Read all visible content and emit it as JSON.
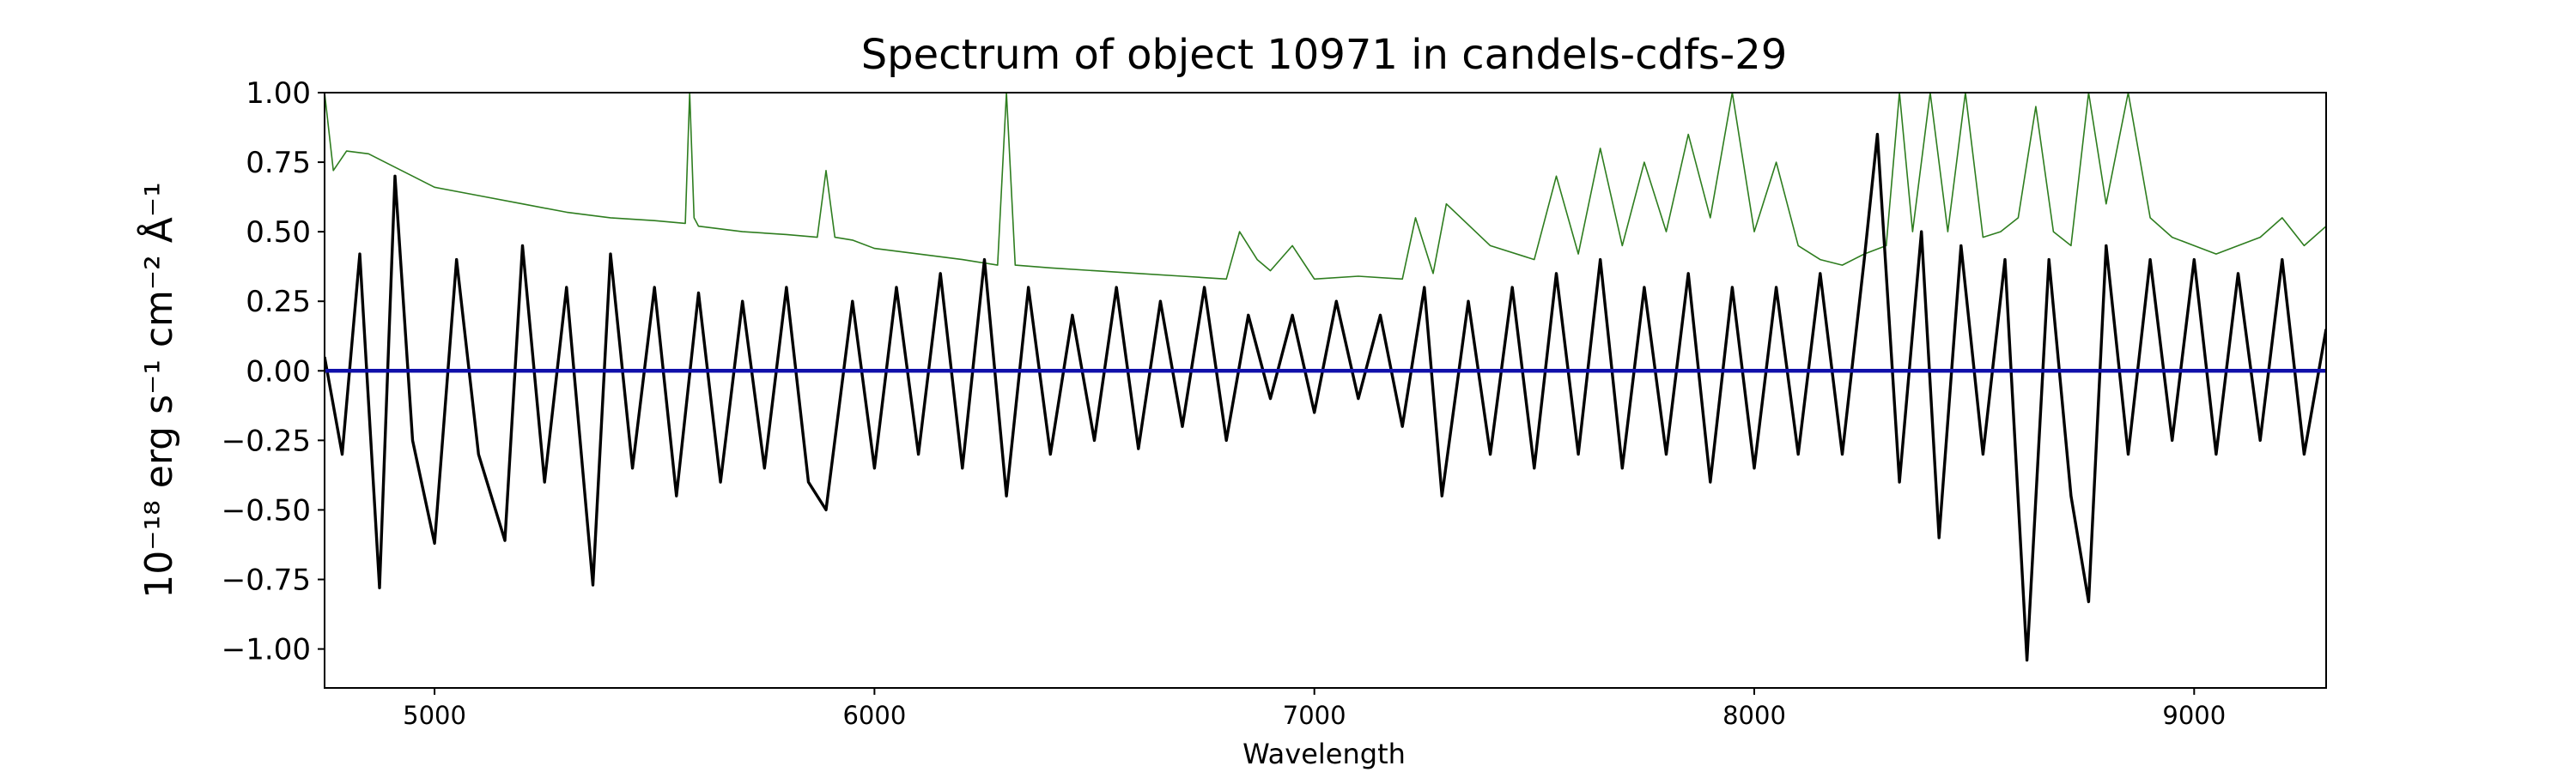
{
  "chart_data": {
    "type": "line",
    "title": "Spectrum of object 10971 in candels-cdfs-29",
    "xlabel": "Wavelength",
    "ylabel": "10⁻¹⁸ erg s⁻¹ cm⁻² Å⁻¹",
    "xlim": [
      4750,
      9300
    ],
    "ylim": [
      -1.14,
      1.0
    ],
    "x_ticks": [
      5000,
      6000,
      7000,
      8000,
      9000
    ],
    "x_tick_labels": [
      "5000",
      "6000",
      "7000",
      "8000",
      "9000"
    ],
    "y_ticks": [
      -1.0,
      -0.75,
      -0.5,
      -0.25,
      0.0,
      0.25,
      0.5,
      0.75,
      1.0
    ],
    "y_tick_labels": [
      "−1.00",
      "−0.75",
      "−0.50",
      "−0.25",
      "0.00",
      "0.25",
      "0.50",
      "0.75",
      "1.00"
    ],
    "grid": false,
    "colors": {
      "flux": "#000000",
      "error": "#2e7d1f",
      "zero": "#1010aa"
    },
    "series": [
      {
        "role": "flux",
        "x": [
          4750,
          4790,
          4830,
          4875,
          4910,
          4950,
          5000,
          5050,
          5100,
          5160,
          5200,
          5250,
          5300,
          5360,
          5400,
          5450,
          5500,
          5550,
          5600,
          5650,
          5700,
          5750,
          5800,
          5850,
          5890,
          5950,
          6000,
          6050,
          6100,
          6150,
          6200,
          6250,
          6300,
          6350,
          6400,
          6450,
          6500,
          6550,
          6600,
          6650,
          6700,
          6750,
          6800,
          6850,
          6900,
          6950,
          7000,
          7050,
          7100,
          7150,
          7200,
          7250,
          7290,
          7350,
          7400,
          7450,
          7500,
          7550,
          7600,
          7650,
          7700,
          7750,
          7800,
          7850,
          7900,
          7950,
          8000,
          8050,
          8100,
          8150,
          8200,
          8250,
          8280,
          8330,
          8380,
          8420,
          8470,
          8520,
          8570,
          8620,
          8670,
          8720,
          8760,
          8800,
          8850,
          8900,
          8950,
          9000,
          9050,
          9100,
          9150,
          9200,
          9250,
          9300
        ],
        "y": [
          0.05,
          -0.3,
          0.42,
          -0.78,
          0.7,
          -0.25,
          -0.62,
          0.4,
          -0.3,
          -0.61,
          0.45,
          -0.4,
          0.3,
          -0.77,
          0.42,
          -0.35,
          0.3,
          -0.45,
          0.28,
          -0.4,
          0.25,
          -0.35,
          0.3,
          -0.4,
          -0.5,
          0.25,
          -0.35,
          0.3,
          -0.3,
          0.35,
          -0.35,
          0.4,
          -0.45,
          0.3,
          -0.3,
          0.2,
          -0.25,
          0.3,
          -0.28,
          0.25,
          -0.2,
          0.3,
          -0.25,
          0.2,
          -0.1,
          0.2,
          -0.15,
          0.25,
          -0.1,
          0.2,
          -0.2,
          0.3,
          -0.45,
          0.25,
          -0.3,
          0.3,
          -0.35,
          0.35,
          -0.3,
          0.4,
          -0.35,
          0.3,
          -0.3,
          0.35,
          -0.4,
          0.3,
          -0.35,
          0.3,
          -0.3,
          0.35,
          -0.3,
          0.4,
          0.85,
          -0.4,
          0.5,
          -0.6,
          0.45,
          -0.3,
          0.4,
          -1.04,
          0.4,
          -0.45,
          -0.83,
          0.45,
          -0.3,
          0.4,
          -0.25,
          0.4,
          -0.3,
          0.35,
          -0.25,
          0.4,
          -0.3,
          0.15
        ]
      },
      {
        "role": "error",
        "x": [
          4750,
          4770,
          4800,
          4850,
          4900,
          4950,
          5000,
          5100,
          5200,
          5300,
          5400,
          5500,
          5570,
          5580,
          5590,
          5600,
          5700,
          5800,
          5870,
          5890,
          5910,
          5950,
          6000,
          6100,
          6200,
          6280,
          6300,
          6320,
          6400,
          6500,
          6600,
          6700,
          6800,
          6830,
          6870,
          6900,
          6950,
          7000,
          7100,
          7200,
          7230,
          7270,
          7300,
          7400,
          7500,
          7550,
          7600,
          7650,
          7700,
          7750,
          7800,
          7850,
          7900,
          7950,
          8000,
          8050,
          8100,
          8150,
          8200,
          8250,
          8300,
          8330,
          8360,
          8400,
          8440,
          8480,
          8520,
          8560,
          8600,
          8640,
          8680,
          8720,
          8760,
          8800,
          8850,
          8900,
          8950,
          9000,
          9050,
          9100,
          9150,
          9200,
          9250,
          9300
        ],
        "y": [
          1.0,
          0.72,
          0.79,
          0.78,
          0.74,
          0.7,
          0.66,
          0.63,
          0.6,
          0.57,
          0.55,
          0.54,
          0.53,
          1.0,
          0.55,
          0.52,
          0.5,
          0.49,
          0.48,
          0.72,
          0.48,
          0.47,
          0.44,
          0.42,
          0.4,
          0.38,
          1.0,
          0.38,
          0.37,
          0.36,
          0.35,
          0.34,
          0.33,
          0.5,
          0.4,
          0.36,
          0.45,
          0.33,
          0.34,
          0.33,
          0.55,
          0.35,
          0.6,
          0.45,
          0.4,
          0.7,
          0.42,
          0.8,
          0.45,
          0.75,
          0.5,
          0.85,
          0.55,
          1.0,
          0.5,
          0.75,
          0.45,
          0.4,
          0.38,
          0.42,
          0.45,
          1.0,
          0.5,
          1.0,
          0.5,
          1.0,
          0.48,
          0.5,
          0.55,
          0.95,
          0.5,
          0.45,
          1.0,
          0.6,
          1.0,
          0.55,
          0.48,
          0.45,
          0.42,
          0.45,
          0.48,
          0.55,
          0.45,
          0.52
        ]
      },
      {
        "role": "zero",
        "x": [
          4750,
          9300
        ],
        "y": [
          0.0,
          0.0
        ]
      }
    ]
  }
}
